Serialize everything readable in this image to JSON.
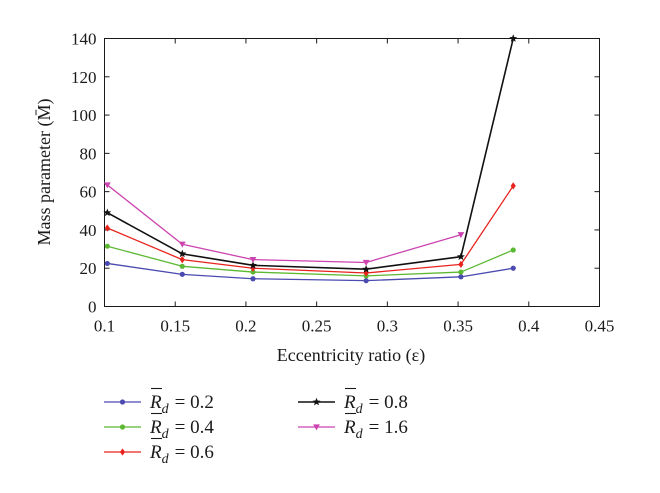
{
  "chart_data": {
    "type": "line",
    "title": "",
    "xlabel": "Eccentricity ratio (ε)",
    "ylabel": "Mass parameter (M̄)",
    "xlim": [
      0.1,
      0.45
    ],
    "ylim": [
      0,
      140
    ],
    "xticks": [
      "0.1",
      "0.15",
      "0.2",
      "0.25",
      "0.3",
      "0.35",
      "0.4",
      "0.45"
    ],
    "yticks": [
      "0",
      "20",
      "40",
      "60",
      "80",
      "100",
      "120",
      "140"
    ],
    "grid": false,
    "legend_position": "bottom",
    "x": [
      0.102,
      0.155,
      0.205,
      0.285,
      0.352,
      0.389
    ],
    "series": [
      {
        "name": "R̄d = 0.2",
        "label_main": "R",
        "label_sub": "d",
        "label_value": "= 0.2",
        "color": "#4a4ab0",
        "marker": "dot",
        "values": [
          22.5,
          16.8,
          14.5,
          13.5,
          15.5,
          20.0
        ]
      },
      {
        "name": "R̄d = 0.4",
        "label_main": "R",
        "label_sub": "d",
        "label_value": "= 0.4",
        "color": "#5cb832",
        "marker": "dot",
        "values": [
          31.5,
          21.0,
          18.0,
          16.0,
          18.0,
          29.5
        ]
      },
      {
        "name": "R̄d = 0.6",
        "label_main": "R",
        "label_sub": "d",
        "label_value": "= 0.6",
        "color": "#e8231e",
        "marker": "diamond",
        "values": [
          41.0,
          24.5,
          20.0,
          17.5,
          22.0,
          63.0
        ]
      },
      {
        "name": "R̄d = 0.8",
        "label_main": "R",
        "label_sub": "d",
        "label_value": "= 0.8",
        "color": "#111111",
        "marker": "star",
        "values": [
          49.0,
          27.5,
          21.5,
          19.5,
          26.0,
          140.0
        ]
      },
      {
        "name": "R̄d = 1.6",
        "label_main": "R",
        "label_sub": "d",
        "label_value": "= 1.6",
        "color": "#cc44b0",
        "marker": "triangle-down",
        "values": [
          63.5,
          32.5,
          24.5,
          23.0,
          37.5,
          null
        ]
      }
    ]
  }
}
